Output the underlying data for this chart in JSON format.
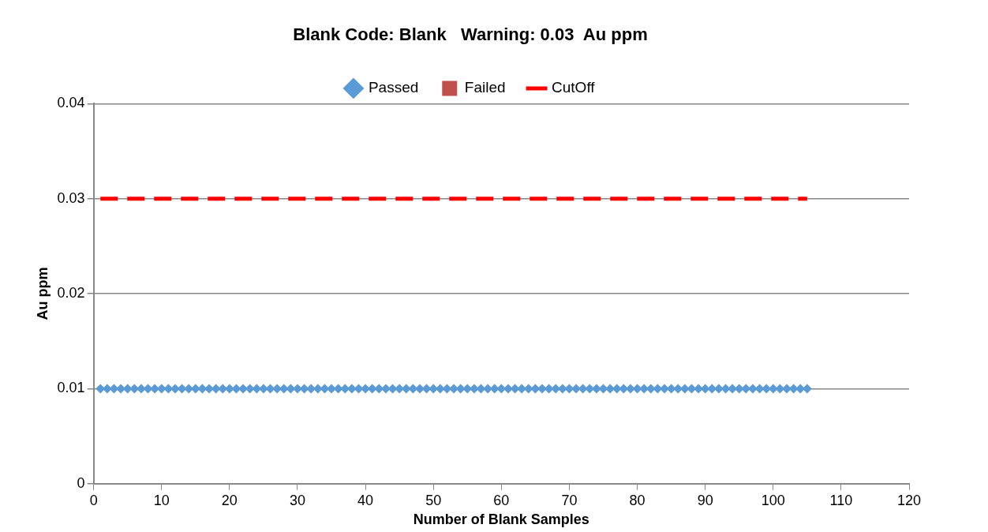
{
  "chart_data": {
    "type": "scatter",
    "title": "Blank Code: Blank   Warning: 0.03  Au ppm",
    "xlabel": "Number of Blank Samples",
    "ylabel": "Au ppm",
    "x": [
      1,
      2,
      3,
      4,
      5,
      6,
      7,
      8,
      9,
      10,
      11,
      12,
      13,
      14,
      15,
      16,
      17,
      18,
      19,
      20,
      21,
      22,
      23,
      24,
      25,
      26,
      27,
      28,
      29,
      30,
      31,
      32,
      33,
      34,
      35,
      36,
      37,
      38,
      39,
      40,
      41,
      42,
      43,
      44,
      45,
      46,
      47,
      48,
      49,
      50,
      51,
      52,
      53,
      54,
      55,
      56,
      57,
      58,
      59,
      60,
      61,
      62,
      63,
      64,
      65,
      66,
      67,
      68,
      69,
      70,
      71,
      72,
      73,
      74,
      75,
      76,
      77,
      78,
      79,
      80,
      81,
      82,
      83,
      84,
      85,
      86,
      87,
      88,
      89,
      90,
      91,
      92,
      93,
      94,
      95,
      96,
      97,
      98,
      99,
      100,
      101,
      102,
      103,
      104,
      105
    ],
    "series": [
      {
        "name": "Passed",
        "color": "#5b9bd5",
        "marker": "diamond",
        "values": [
          0.01,
          0.01,
          0.01,
          0.01,
          0.01,
          0.01,
          0.01,
          0.01,
          0.01,
          0.01,
          0.01,
          0.01,
          0.01,
          0.01,
          0.01,
          0.01,
          0.01,
          0.01,
          0.01,
          0.01,
          0.01,
          0.01,
          0.01,
          0.01,
          0.01,
          0.01,
          0.01,
          0.01,
          0.01,
          0.01,
          0.01,
          0.01,
          0.01,
          0.01,
          0.01,
          0.01,
          0.01,
          0.01,
          0.01,
          0.01,
          0.01,
          0.01,
          0.01,
          0.01,
          0.01,
          0.01,
          0.01,
          0.01,
          0.01,
          0.01,
          0.01,
          0.01,
          0.01,
          0.01,
          0.01,
          0.01,
          0.01,
          0.01,
          0.01,
          0.01,
          0.01,
          0.01,
          0.01,
          0.01,
          0.01,
          0.01,
          0.01,
          0.01,
          0.01,
          0.01,
          0.01,
          0.01,
          0.01,
          0.01,
          0.01,
          0.01,
          0.01,
          0.01,
          0.01,
          0.01,
          0.01,
          0.01,
          0.01,
          0.01,
          0.01,
          0.01,
          0.01,
          0.01,
          0.01,
          0.01,
          0.01,
          0.01,
          0.01,
          0.01,
          0.01,
          0.01,
          0.01,
          0.01,
          0.01,
          0.01,
          0.01,
          0.01,
          0.01,
          0.01,
          0.01
        ]
      },
      {
        "name": "Failed",
        "color": "#c0504d",
        "marker": "square",
        "values": [
          null,
          null,
          null,
          null,
          null,
          null,
          null,
          null,
          null,
          null,
          null,
          null,
          null,
          null,
          null,
          null,
          null,
          null,
          null,
          null,
          null,
          null,
          null,
          null,
          null,
          null,
          null,
          null,
          null,
          null,
          null,
          null,
          null,
          null,
          null,
          null,
          null,
          null,
          null,
          null,
          null,
          null,
          null,
          null,
          null,
          null,
          null,
          null,
          null,
          null,
          null,
          null,
          null,
          null,
          null,
          null,
          null,
          null,
          null,
          null,
          null,
          null,
          null,
          null,
          null,
          null,
          null,
          null,
          null,
          null,
          null,
          null,
          null,
          null,
          null,
          null,
          null,
          null,
          null,
          null,
          null,
          null,
          null,
          null,
          null,
          null,
          null,
          null,
          null,
          null,
          null,
          null,
          null,
          null,
          null,
          null,
          null,
          null,
          null,
          null,
          null,
          null,
          null,
          null,
          null
        ]
      },
      {
        "name": "CutOff",
        "color": "#ff0000",
        "type": "line",
        "line_style": "dashed",
        "marker": "none",
        "x": [
          1,
          105
        ],
        "values": [
          0.03,
          0.03
        ]
      }
    ],
    "xlim": [
      0,
      120
    ],
    "xticks": [
      0,
      10,
      20,
      30,
      40,
      50,
      60,
      70,
      80,
      90,
      100,
      110,
      120
    ],
    "ylim": [
      0,
      0.04
    ],
    "yticks": [
      0,
      0.01,
      0.02,
      0.03,
      0.04
    ],
    "grid": "y",
    "legend": "top"
  }
}
